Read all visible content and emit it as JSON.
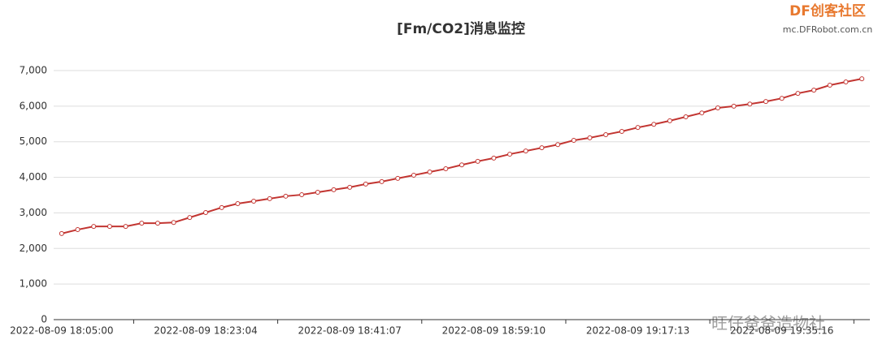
{
  "chart_data": {
    "type": "line",
    "title": "[Fm/CO2]消息监控",
    "categories": [
      "2022-08-09 18:05:00",
      null,
      null,
      null,
      null,
      null,
      null,
      null,
      null,
      "2022-08-09 18:23:04",
      null,
      null,
      null,
      null,
      null,
      null,
      null,
      null,
      "2022-08-09 18:41:07",
      null,
      null,
      null,
      null,
      null,
      null,
      null,
      null,
      "2022-08-09 18:59:10",
      null,
      null,
      null,
      null,
      null,
      null,
      null,
      null,
      "2022-08-09 19:17:13",
      null,
      null,
      null,
      null,
      null,
      null,
      null,
      null,
      "2022-08-09 19:35:16",
      null,
      null,
      null,
      null,
      null
    ],
    "series": [
      {
        "name": "CO2",
        "color": "#c23531",
        "values": [
          2420,
          2530,
          2620,
          2620,
          2620,
          2710,
          2710,
          2730,
          2870,
          3010,
          3150,
          3260,
          3330,
          3400,
          3470,
          3510,
          3580,
          3650,
          3720,
          3810,
          3880,
          3970,
          4060,
          4150,
          4240,
          4350,
          4450,
          4540,
          4650,
          4740,
          4830,
          4920,
          5040,
          5110,
          5200,
          5290,
          5400,
          5490,
          5590,
          5700,
          5810,
          5950,
          6000,
          6060,
          6130,
          6220,
          6360,
          6450,
          6590,
          6680,
          6770
        ]
      }
    ],
    "ylim": [
      0,
      7000
    ],
    "yticks": [
      0,
      {
        "value": 1000,
        "label": "1,000"
      },
      {
        "value": 2000,
        "label": "2,000"
      },
      {
        "value": 3000,
        "label": "3,000"
      },
      {
        "value": 4000,
        "label": "4,000"
      },
      {
        "value": 5000,
        "label": "5,000"
      },
      {
        "value": 6000,
        "label": "6,000"
      },
      {
        "value": 7000,
        "label": "7,000"
      }
    ],
    "grid": true
  },
  "watermark": {
    "brand": "DF创客社区",
    "url": "mc.DFRobot.com.cn",
    "account": "旺仔爸爸造物社"
  }
}
